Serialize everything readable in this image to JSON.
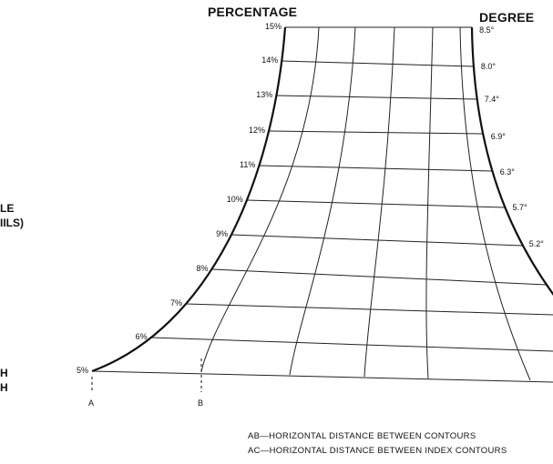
{
  "titles": {
    "percentage": "PERCENTAGE",
    "degree": "DEGREE"
  },
  "percentage_ticks": [
    "15%",
    "14%",
    "13%",
    "12%",
    "11%",
    "10%",
    "9%",
    "8%",
    "7%",
    "6%",
    "5%"
  ],
  "degree_ticks": [
    "8.5°",
    "8.0°",
    "7.4°",
    "6.9°",
    "6.3°",
    "5.7°",
    "5.2°"
  ],
  "points": {
    "a": "A",
    "b": "B"
  },
  "left_fragments": {
    "line1": "LE",
    "line2": "IILS)",
    "line3": "H",
    "line4": "H"
  },
  "legend": {
    "ab": "AB—HORIZONTAL DISTANCE BETWEEN CONTOURS",
    "ac": "AC—HORIZONTAL DISTANCE BETWEEN INDEX CONTOURS"
  }
}
